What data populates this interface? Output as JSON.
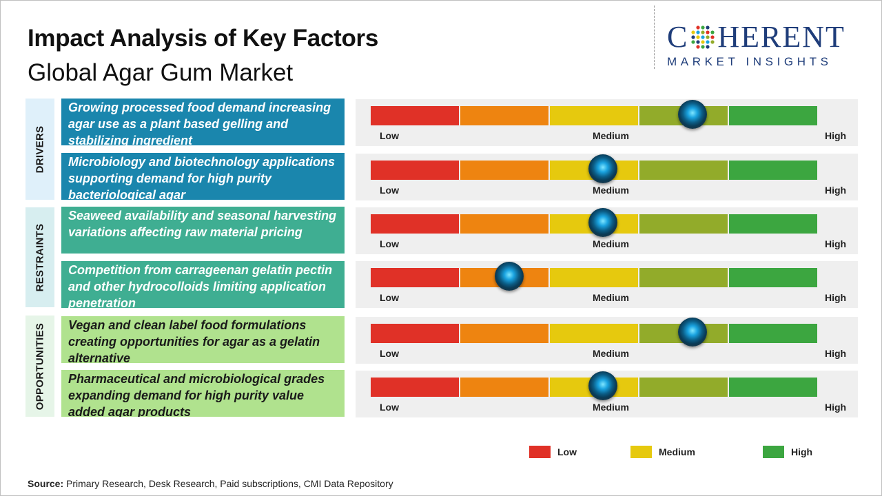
{
  "header": {
    "title": "Impact Analysis of Key Factors",
    "subtitle": "Global Agar Gum Market"
  },
  "logo": {
    "top_left": "C",
    "top_right": "HERENT",
    "bottom": "MARKET INSIGHTS"
  },
  "colors": {
    "low": "#e03127",
    "low_medium": "#ee8410",
    "medium": "#e6c90e",
    "medium_high": "#92ab2a",
    "high": "#3ca640",
    "drivers_bg": "#1a86ad",
    "restraints_bg": "#3fae92",
    "opportunities_bg": "#b0e28e",
    "drivers_cat_bg": "#dff0fa",
    "restraints_cat_bg": "#d7eef0",
    "opportunities_cat_bg": "#e6f5e8"
  },
  "chart_data": {
    "type": "table",
    "scale": [
      "Low",
      "Medium",
      "High"
    ],
    "categories": [
      {
        "name": "DRIVERS",
        "factors": [
          {
            "text": "Growing processed food demand increasing agar use as a plant based gelling and stabilizing ingredient",
            "impact": 0.72,
            "low": "Low",
            "medium": "Medium",
            "high": "High"
          },
          {
            "text": "Microbiology and biotechnology applications supporting demand for high purity bacteriological agar",
            "impact": 0.52,
            "low": "Low",
            "medium": "Medium",
            "high": "High"
          }
        ]
      },
      {
        "name": "RESTRAINTS",
        "factors": [
          {
            "text": "Seaweed availability and seasonal harvesting variations affecting raw material pricing",
            "impact": 0.52,
            "low": "Low",
            "medium": "Medium",
            "high": "High"
          },
          {
            "text": "Competition from carrageenan gelatin pectin and other hydrocolloids limiting application penetration",
            "impact": 0.31,
            "low": "Low",
            "medium": "Medium",
            "high": "High"
          }
        ]
      },
      {
        "name": "OPPORTUNITIES",
        "factors": [
          {
            "text": "Vegan and clean label food formulations creating opportunities for agar as a gelatin alternative",
            "impact": 0.72,
            "low": "Low",
            "medium": "Medium",
            "high": "High"
          },
          {
            "text": "Pharmaceutical and microbiological grades expanding demand for high purity value added agar products",
            "impact": 0.52,
            "low": "Low",
            "medium": "Medium",
            "high": "High"
          }
        ]
      }
    ],
    "legend": [
      {
        "label": "Low",
        "color": "#e03127"
      },
      {
        "label": "Medium",
        "color": "#e6c90e"
      },
      {
        "label": "High",
        "color": "#3ca640"
      }
    ]
  },
  "source": {
    "prefix": "Source:",
    "text": " Primary Research, Desk Research, Paid subscriptions, CMI Data Repository"
  }
}
